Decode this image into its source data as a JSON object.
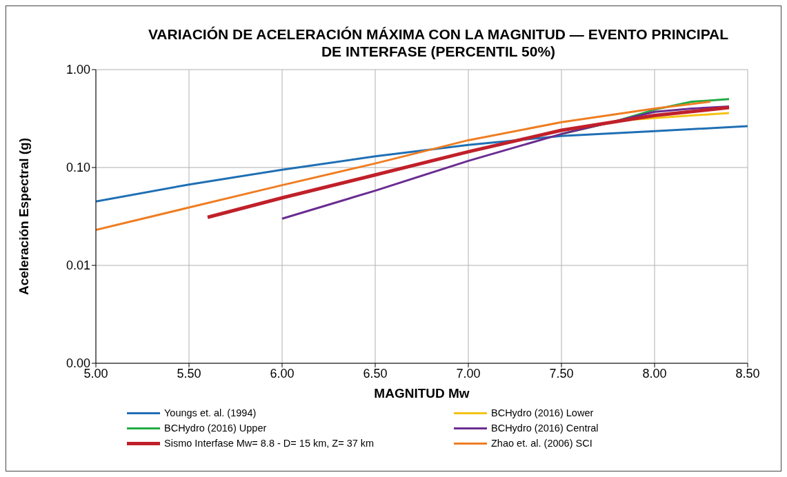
{
  "chart_data": {
    "type": "line",
    "title": "VARIACIÓN DE ACELERACIÓN MÁXIMA CON LA MAGNITUD — EVENTO PRINCIPAL DE INTERFASE (PERCENTIL 50%)",
    "xlabel": "MAGNITUD Mw",
    "ylabel": "Aceleración Espectral (g)",
    "log": "y",
    "grid": true,
    "legend": "bottom",
    "marker": "none",
    "line_style": "solid",
    "xlim": [
      5,
      8.5
    ],
    "xticks": [
      {
        "value": 5,
        "label": "5.00"
      },
      {
        "value": 5.5,
        "label": "5.50"
      },
      {
        "value": 6,
        "label": "6.00"
      },
      {
        "value": 6.5,
        "label": "6.50"
      },
      {
        "value": 7,
        "label": "7.00"
      },
      {
        "value": 7.5,
        "label": "7.50"
      },
      {
        "value": 8,
        "label": "8.00"
      },
      {
        "value": 8.5,
        "label": "8.50"
      }
    ],
    "ylim": [
      0.001,
      1
    ],
    "yticks": [
      {
        "value": 0.001,
        "label": "0.00"
      },
      {
        "value": 0.01,
        "label": "0.01"
      },
      {
        "value": 0.1,
        "label": "0.10"
      },
      {
        "value": 1,
        "label": "1.00"
      }
    ],
    "series": [
      {
        "name": "Youngs et. al. (1994)",
        "color": "#1f6fb4",
        "x": [
          5,
          5.5,
          6,
          6.5,
          7,
          7.5,
          8,
          8.5
        ],
        "values": [
          0.045,
          0.067,
          0.095,
          0.13,
          0.17,
          0.21,
          0.235,
          0.265
        ]
      },
      {
        "name": "BCHydro (2016) Lower",
        "color": "#f5c211",
        "x": [
          7.5,
          7.8,
          8,
          8.2,
          8.4
        ],
        "values": [
          0.22,
          0.3,
          0.32,
          0.34,
          0.36
        ]
      },
      {
        "name": "BCHydro (2016) Upper",
        "color": "#22aa44",
        "x": [
          7.5,
          7.8,
          8,
          8.2,
          8.4
        ],
        "values": [
          0.22,
          0.3,
          0.39,
          0.47,
          0.5
        ]
      },
      {
        "name": "BCHydro (2016) Central",
        "color": "#6a2c91",
        "x": [
          6,
          6.5,
          7,
          7.5,
          7.8,
          8,
          8.2,
          8.4
        ],
        "values": [
          0.03,
          0.058,
          0.117,
          0.22,
          0.3,
          0.37,
          0.4,
          0.42
        ]
      },
      {
        "name": "Sismo Interfase Mw= 8.8 - D= 15 km, Z= 37 km",
        "color": "#c0202a",
        "x": [
          5.6,
          6,
          6.5,
          7,
          7.5,
          8,
          8.4
        ],
        "values": [
          0.031,
          0.049,
          0.084,
          0.145,
          0.24,
          0.34,
          0.41
        ]
      },
      {
        "name": "Zhao et. al. (2006) SCI",
        "color": "#ef7d22",
        "x": [
          5,
          5.5,
          6,
          6.5,
          7,
          7.5,
          8,
          8.3
        ],
        "values": [
          0.023,
          0.039,
          0.066,
          0.11,
          0.19,
          0.29,
          0.4,
          0.47
        ]
      }
    ]
  }
}
